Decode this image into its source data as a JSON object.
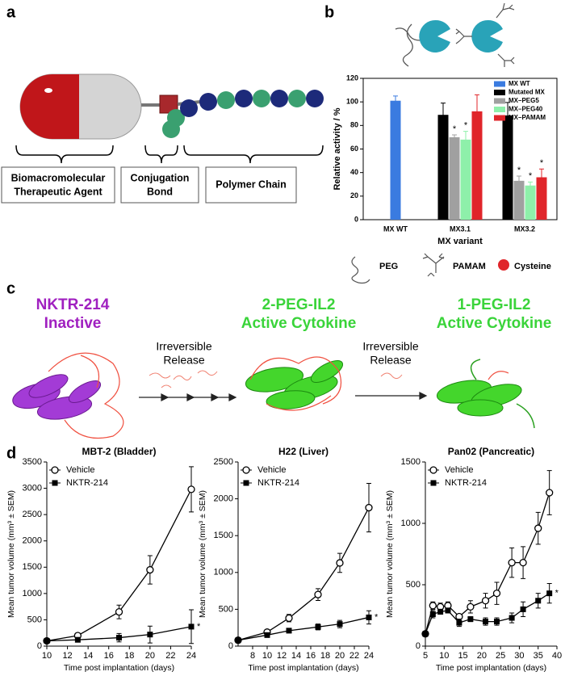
{
  "figure": {
    "panel_labels": [
      "a",
      "b",
      "c",
      "d"
    ],
    "panel_a": {
      "boxes": [
        [
          "Biomacromolecular",
          "Therapeutic Agent"
        ],
        [
          "Conjugation",
          "Bond"
        ],
        [
          "Polymer Chain"
        ]
      ]
    },
    "panel_b": {
      "legend": [
        "PEG",
        "PAMAM",
        "Cysteine"
      ]
    },
    "panel_c": {
      "states": [
        [
          "NKTR-214",
          "Inactive"
        ],
        [
          "2-PEG-IL2",
          "Active Cytokine"
        ],
        [
          "1-PEG-IL2",
          "Active Cytokine"
        ]
      ],
      "steps": [
        [
          "Irreversible",
          "Release"
        ],
        [
          "Irreversible",
          "Release"
        ]
      ]
    }
  },
  "chart_data": [
    {
      "type": "bar",
      "ylabel": "Relative activity / %",
      "xlabel": "MX variant",
      "categories": [
        "MX WT",
        "MX3.1",
        "MX3.2"
      ],
      "series": [
        {
          "name": "MX WT",
          "color": "#3a7be0",
          "values": [
            101,
            null,
            null
          ],
          "errors": [
            4,
            null,
            null
          ],
          "markers": [
            null,
            null,
            null
          ]
        },
        {
          "name": "Mutated MX",
          "color": "#000000",
          "values": [
            null,
            89,
            88.5
          ],
          "errors": [
            null,
            10,
            11
          ],
          "markers": [
            null,
            null,
            null
          ]
        },
        {
          "name": "MX–PEG5",
          "color": "#a0a0a0",
          "values": [
            null,
            70,
            33
          ],
          "errors": [
            null,
            2,
            4
          ],
          "markers": [
            null,
            "*",
            "*"
          ]
        },
        {
          "name": "MX–PEG40",
          "color": "#8ef0aa",
          "values": [
            null,
            68,
            29
          ],
          "errors": [
            null,
            7,
            3
          ],
          "markers": [
            null,
            "*",
            "*"
          ]
        },
        {
          "name": "MX–PAMAM",
          "color": "#e0252a",
          "values": [
            null,
            92,
            36
          ],
          "errors": [
            null,
            14,
            7
          ],
          "markers": [
            null,
            null,
            "*"
          ]
        }
      ],
      "ylim": [
        0,
        120
      ],
      "yticks": [
        0,
        20,
        40,
        60,
        80,
        100,
        120
      ]
    },
    {
      "type": "line",
      "title": "MBT-2 (Bladder)",
      "ylabel": "Mean tumor volume (mm³ ± SEM)",
      "xlabel": "Time post implantation (days)",
      "x": [
        10,
        13,
        17,
        20,
        24
      ],
      "series": [
        {
          "name": "Vehicle",
          "marker": "open-circle",
          "values": [
            100,
            200,
            650,
            1450,
            2980
          ],
          "errors": [
            20,
            30,
            130,
            270,
            430
          ]
        },
        {
          "name": "NKTR-214",
          "marker": "filled-square",
          "values": [
            100,
            120,
            160,
            220,
            370
          ],
          "errors": [
            10,
            20,
            80,
            160,
            320
          ]
        }
      ],
      "annotation": "*",
      "xlim": [
        10,
        24
      ],
      "xticks": [
        10,
        12,
        14,
        16,
        18,
        20,
        22,
        24
      ],
      "ylim": [
        0,
        3500
      ],
      "yticks": [
        0,
        500,
        1000,
        1500,
        2000,
        2500,
        3000,
        3500
      ]
    },
    {
      "type": "line",
      "title": "H22 (Liver)",
      "ylabel": "Mean tumor volume (mm³ ± SEM)",
      "xlabel": "Time post implantation (days)",
      "x": [
        6,
        10,
        13,
        17,
        20,
        24
      ],
      "series": [
        {
          "name": "Vehicle",
          "marker": "open-circle",
          "values": [
            80,
            190,
            380,
            700,
            1130,
            1880
          ],
          "errors": [
            20,
            30,
            50,
            80,
            130,
            330
          ]
        },
        {
          "name": "NKTR-214",
          "marker": "filled-square",
          "values": [
            80,
            150,
            210,
            260,
            300,
            390
          ],
          "errors": [
            10,
            20,
            30,
            40,
            50,
            90
          ]
        }
      ],
      "annotation": "*",
      "xlim": [
        6,
        24
      ],
      "xticks": [
        8,
        10,
        12,
        14,
        16,
        18,
        20,
        22,
        24
      ],
      "ylim": [
        0,
        2500
      ],
      "yticks": [
        0,
        500,
        1000,
        1500,
        2000,
        2500
      ]
    },
    {
      "type": "line",
      "title": "Pan02 (Pancreatic)",
      "ylabel": "Mean tumor volume (mm³ ± SEM)",
      "xlabel": "Time post implantation (days)",
      "x": [
        5,
        7,
        9,
        11,
        14,
        17,
        21,
        24,
        28,
        31,
        35,
        38
      ],
      "series": [
        {
          "name": "Vehicle",
          "marker": "open-circle",
          "values": [
            100,
            330,
            320,
            330,
            240,
            320,
            370,
            430,
            680,
            680,
            960,
            1250
          ],
          "errors": [
            0,
            30,
            30,
            30,
            20,
            50,
            60,
            90,
            120,
            130,
            130,
            180
          ]
        },
        {
          "name": "NKTR-214",
          "marker": "filled-square",
          "values": [
            100,
            260,
            280,
            290,
            190,
            220,
            200,
            200,
            230,
            300,
            370,
            430
          ],
          "errors": [
            0,
            30,
            20,
            20,
            30,
            20,
            30,
            30,
            40,
            60,
            60,
            80
          ]
        }
      ],
      "annotation": "*",
      "xlim": [
        5,
        40
      ],
      "xticks": [
        5,
        10,
        15,
        20,
        25,
        30,
        35,
        40
      ],
      "ylim": [
        0,
        1500
      ],
      "yticks": [
        0,
        500,
        1000,
        1500
      ]
    }
  ]
}
